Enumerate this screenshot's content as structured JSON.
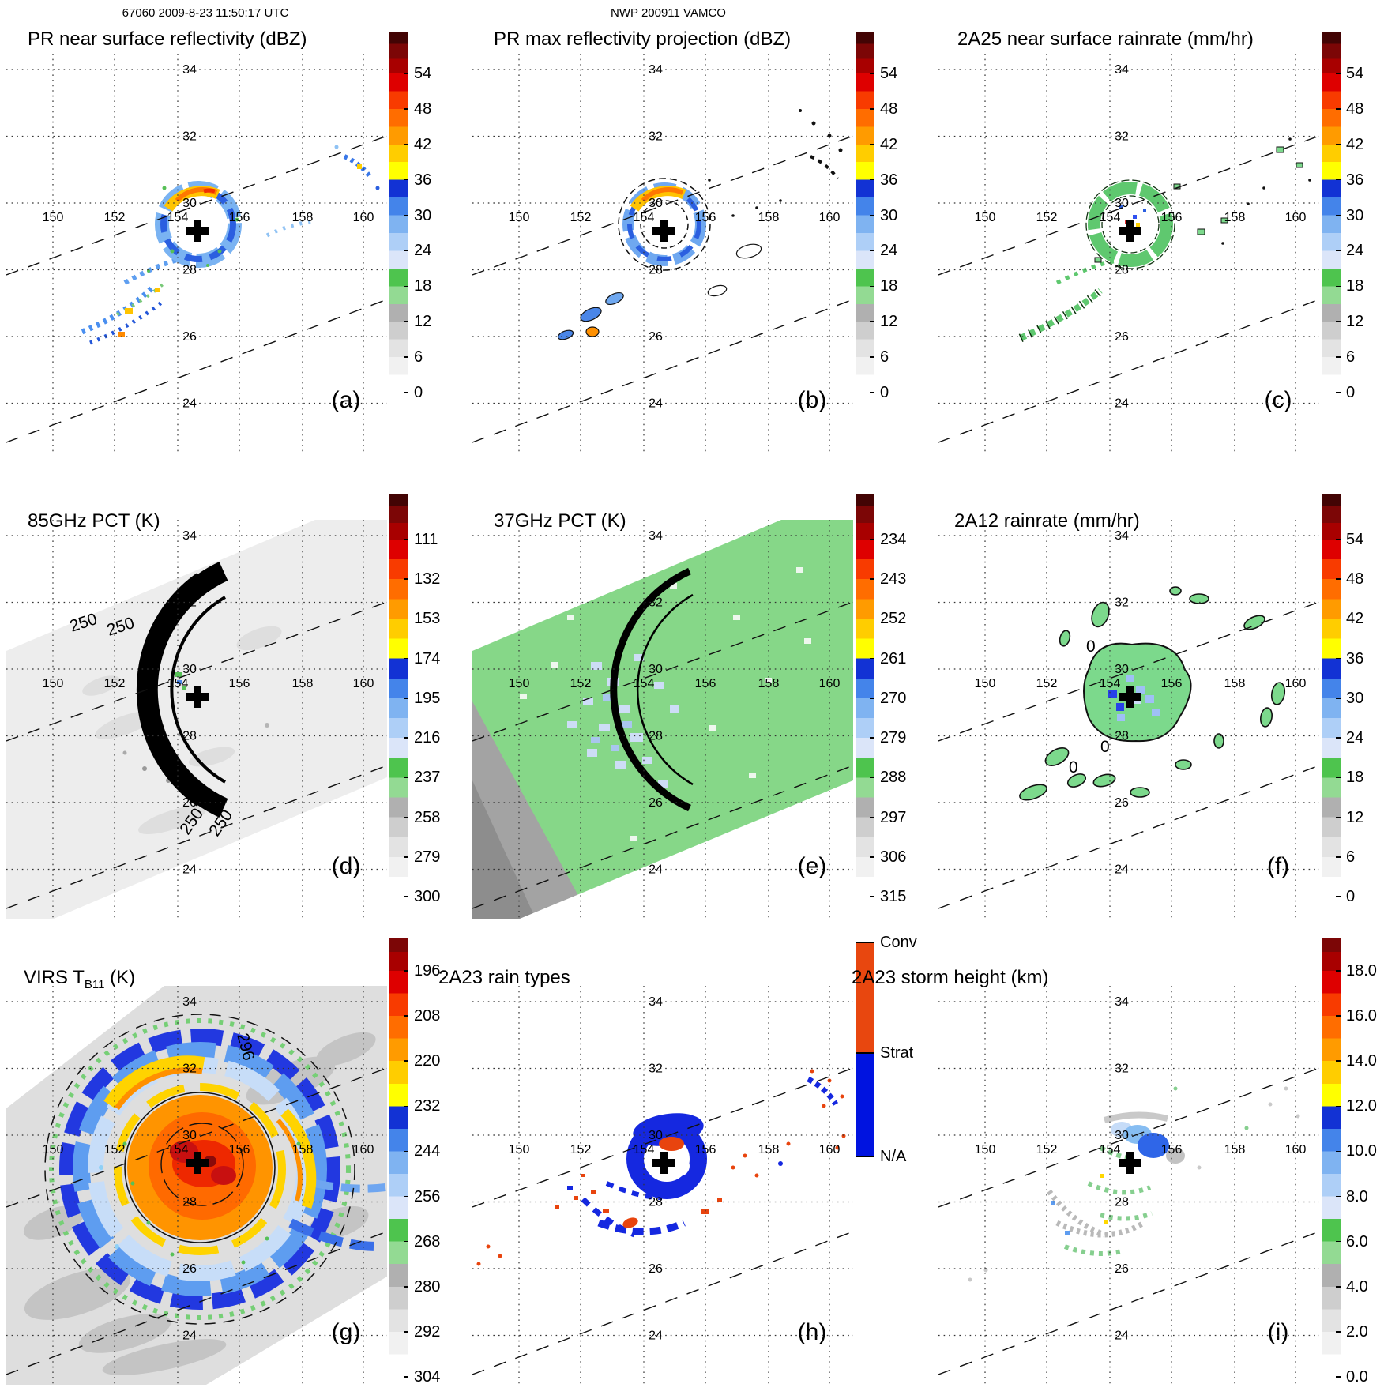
{
  "header": {
    "left": "67060 2009-8-23 11:50:17 UTC",
    "center": "NWP 200911 VAMCO"
  },
  "map": {
    "lon_labels": [
      "150",
      "152",
      "154",
      "156",
      "158",
      "160"
    ],
    "lat_labels": [
      "34",
      "32",
      "30",
      "28",
      "26",
      "24"
    ]
  },
  "panels": [
    {
      "letter": "(a)",
      "title": "PR near surface reflectivity (dBZ)",
      "cb": "dbz"
    },
    {
      "letter": "(b)",
      "title": "PR max reflectivity projection (dBZ)",
      "cb": "dbz"
    },
    {
      "letter": "(c)",
      "title": "2A25 near surface rainrate (mm/hr)",
      "cb": "dbz"
    },
    {
      "letter": "(d)",
      "title": "85GHz PCT (K)",
      "cb": "pct85"
    },
    {
      "letter": "(e)",
      "title": "37GHz PCT (K)",
      "cb": "pct37"
    },
    {
      "letter": "(f)",
      "title": "2A12 rainrate (mm/hr)",
      "cb": "dbz"
    },
    {
      "letter": "(g)",
      "title": "VIRS T",
      "title_sub": "B11",
      "title_post": " (K)",
      "cb": "tb11"
    },
    {
      "letter": "(h)",
      "title": "2A23 rain types",
      "cb": "raintype"
    },
    {
      "letter": "(i)",
      "title": "2A23 storm height (km)",
      "cb": "height"
    }
  ],
  "colorbars": {
    "dbz": {
      "ticks": [
        "54",
        "48",
        "42",
        "36",
        "30",
        "24",
        "18",
        "12",
        "6",
        "0"
      ]
    },
    "pct85": {
      "ticks": [
        "111",
        "132",
        "153",
        "174",
        "195",
        "216",
        "237",
        "258",
        "279",
        "300"
      ]
    },
    "pct37": {
      "ticks": [
        "234",
        "243",
        "252",
        "261",
        "270",
        "279",
        "288",
        "297",
        "306",
        "315"
      ]
    },
    "tb11": {
      "ticks": [
        "196",
        "208",
        "220",
        "232",
        "244",
        "256",
        "268",
        "280",
        "292",
        "304"
      ]
    },
    "height": {
      "ticks": [
        "18.0",
        "16.0",
        "14.0",
        "12.0",
        "10.0",
        "8.0",
        "6.0",
        "4.0",
        "2.0",
        "0.0"
      ]
    },
    "raintype": {
      "labels": [
        "Conv",
        "Strat",
        "N/A"
      ],
      "colors": [
        "#e8470f",
        "#0013e0",
        "#ffffff"
      ]
    },
    "palette_bottom_to_top": [
      {
        "v0": 0,
        "v1": 3,
        "c": "#ffffff"
      },
      {
        "v0": 3,
        "v1": 6,
        "c": "#f1f1f1"
      },
      {
        "v0": 6,
        "v1": 9,
        "c": "#e3e3e3"
      },
      {
        "v0": 9,
        "v1": 12,
        "c": "#cecece"
      },
      {
        "v0": 12,
        "v1": 15,
        "c": "#b0b0b0"
      },
      {
        "v0": 15,
        "v1": 18,
        "c": "#93da93"
      },
      {
        "v0": 18,
        "v1": 21,
        "c": "#4ec44e"
      },
      {
        "v0": 21,
        "v1": 24,
        "c": "#dbe5f9"
      },
      {
        "v0": 24,
        "v1": 27,
        "c": "#aecff7"
      },
      {
        "v0": 27,
        "v1": 30,
        "c": "#7fb3f1"
      },
      {
        "v0": 30,
        "v1": 33,
        "c": "#4484ea"
      },
      {
        "v0": 33,
        "v1": 36,
        "c": "#1232d4"
      },
      {
        "v0": 36,
        "v1": 39,
        "c": "#ffff00"
      },
      {
        "v0": 39,
        "v1": 42,
        "c": "#ffcd00"
      },
      {
        "v0": 42,
        "v1": 45,
        "c": "#ff9b00"
      },
      {
        "v0": 45,
        "v1": 48,
        "c": "#ff6d00"
      },
      {
        "v0": 48,
        "v1": 51,
        "c": "#f83b00"
      },
      {
        "v0": 51,
        "v1": 54,
        "c": "#de0000"
      },
      {
        "v0": 54,
        "v1": 56.5,
        "c": "#a80000"
      },
      {
        "v0": 56.5,
        "v1": 59,
        "c": "#7c0606"
      },
      {
        "v0": 59,
        "v1": 61,
        "c": "#430404"
      }
    ]
  },
  "annotations": {
    "pct85_contour": "250",
    "zero_contour": "0",
    "tb11_contour": "296"
  }
}
